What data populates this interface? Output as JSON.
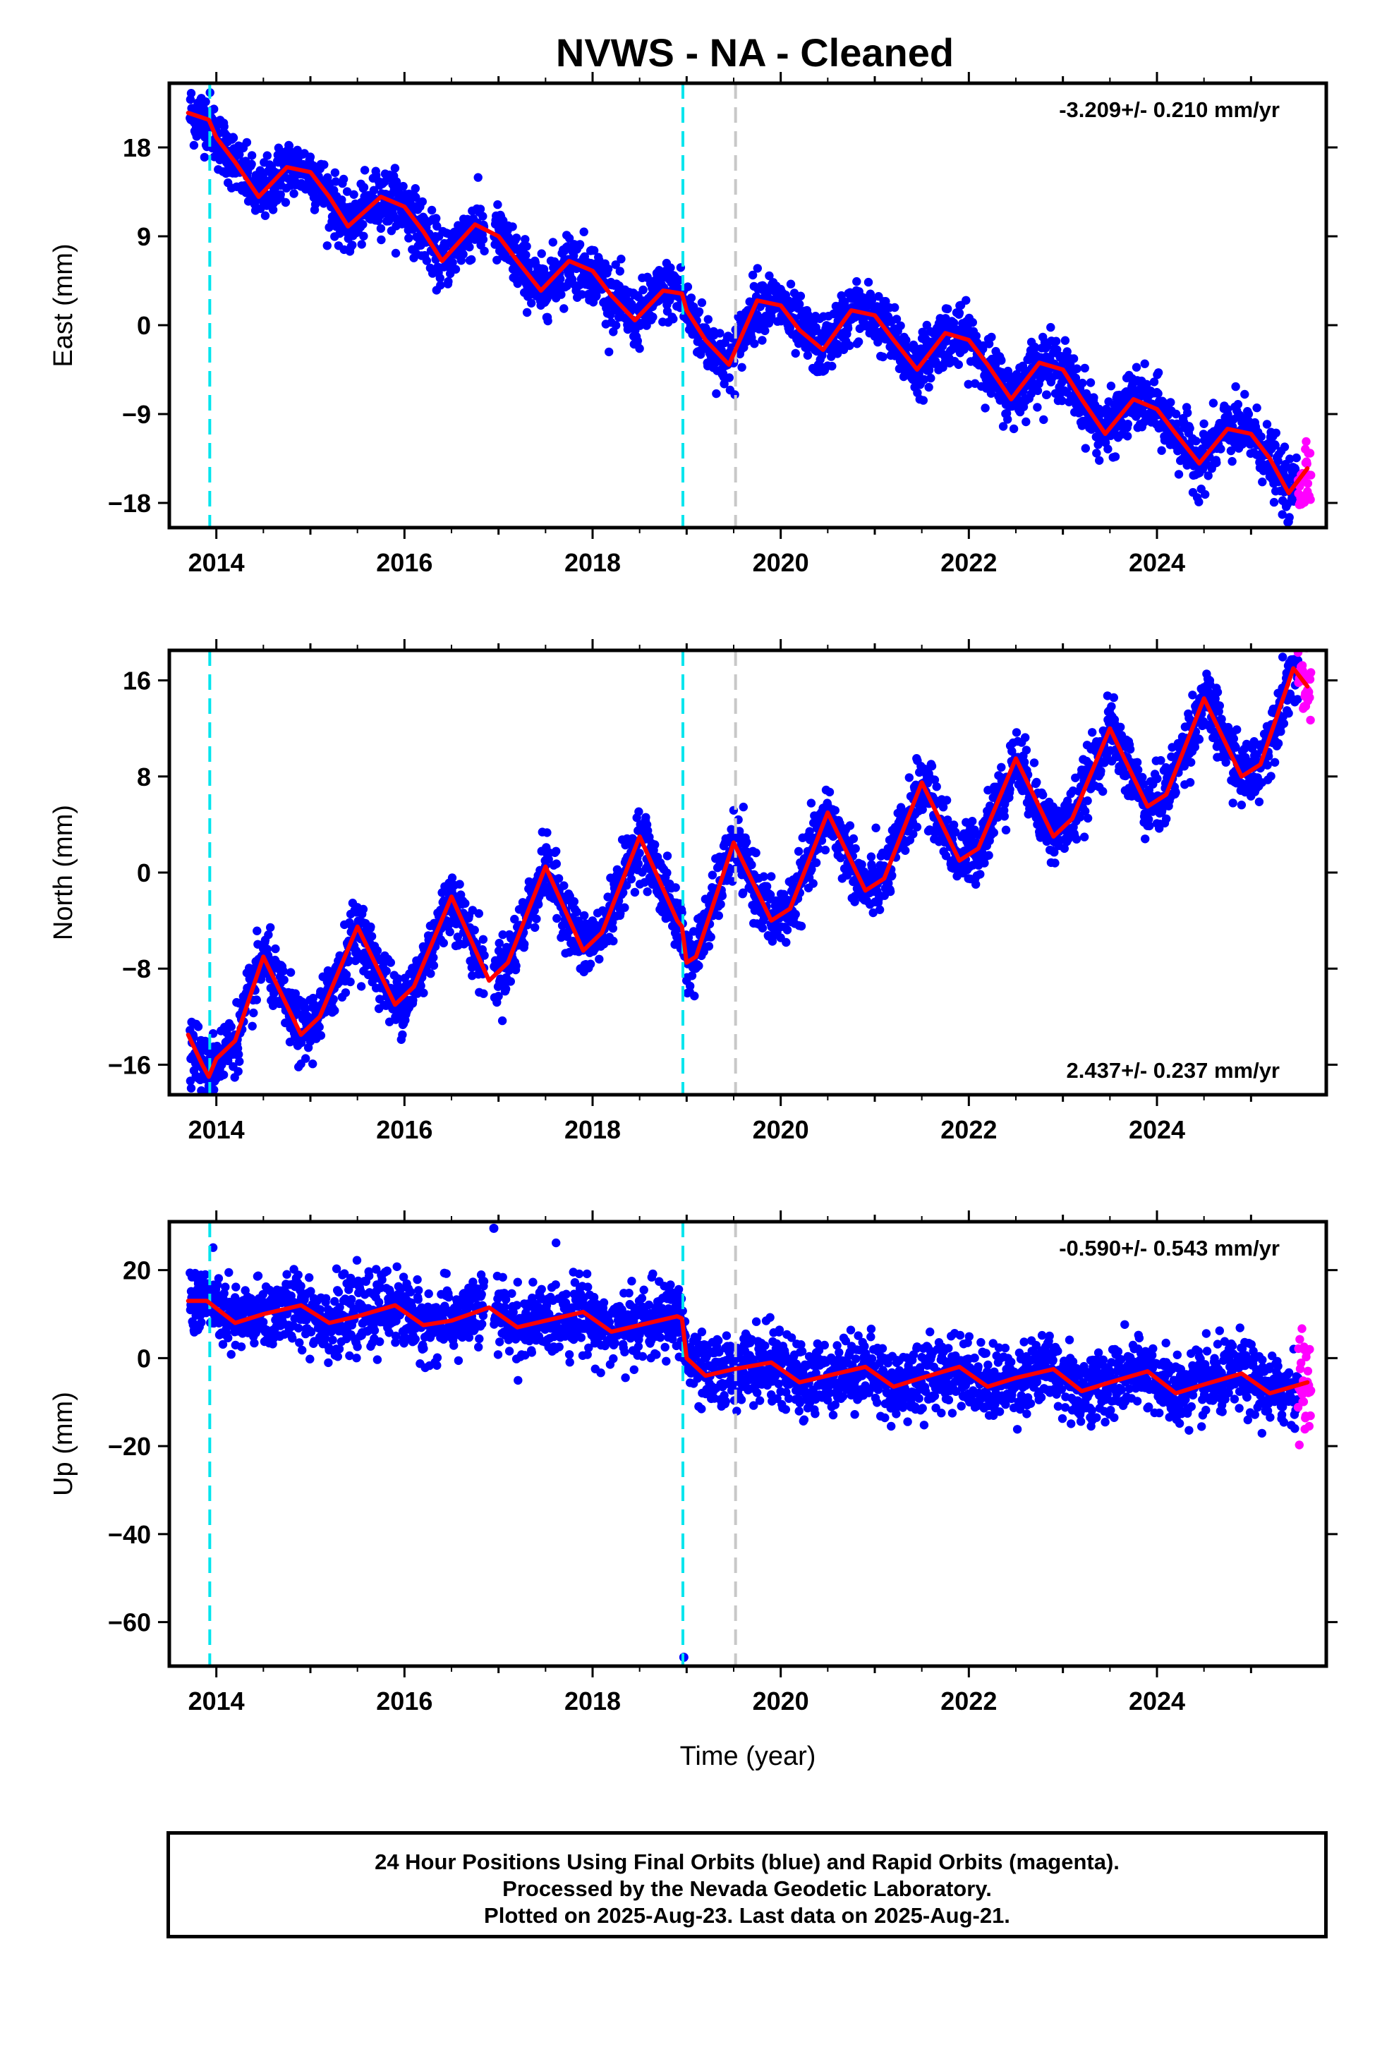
{
  "title": "NVWS  - NA - Cleaned",
  "footer": {
    "line1": "24 Hour Positions Using Final Orbits (blue) and Rapid Orbits (magenta).",
    "line2": "Processed by the Nevada Geodetic Laboratory.",
    "line3": "Plotted on 2025-Aug-23. Last data on 2025-Aug-21."
  },
  "colors": {
    "final_orbits": "#0000ff",
    "rapid_orbits": "#ff00ff",
    "model": "#ff0000",
    "equipment_change": "#00e5ee",
    "other_event": "#c8c8c8"
  },
  "chart_data": [
    {
      "type": "scatter",
      "component": "east",
      "ylabel": "East (mm)",
      "xlabel": "",
      "xlim": [
        2013.5,
        2025.8
      ],
      "ylim": [
        -20.5,
        24.5
      ],
      "yticks": [
        18,
        9,
        0,
        -9,
        -18
      ],
      "xticks": [
        2014,
        2016,
        2018,
        2020,
        2022,
        2024
      ],
      "rate_label": "-3.209+/- 0.210 mm/yr",
      "rate_position": "top-right",
      "trend_mm_per_yr": -3.209,
      "series": [
        {
          "kind": "model",
          "x": [
            2013.7,
            2013.92,
            2014.0,
            2014.2,
            2014.45,
            2014.75,
            2015.0,
            2015.2,
            2015.4,
            2015.75,
            2016.0,
            2016.2,
            2016.4,
            2016.75,
            2017.0,
            2017.2,
            2017.45,
            2017.75,
            2018.0,
            2018.2,
            2018.45,
            2018.75,
            2018.95,
            2019.0,
            2019.2,
            2019.45,
            2019.75,
            2020.0,
            2020.2,
            2020.45,
            2020.75,
            2021.0,
            2021.2,
            2021.45,
            2021.75,
            2022.0,
            2022.2,
            2022.45,
            2022.75,
            2023.0,
            2023.2,
            2023.45,
            2023.75,
            2024.0,
            2024.2,
            2024.45,
            2024.75,
            2025.0,
            2025.2,
            2025.4,
            2025.6
          ],
          "y": [
            21.5,
            20.8,
            19.0,
            16.5,
            13.0,
            16.0,
            15.5,
            13.0,
            10.0,
            13.0,
            12.0,
            9.5,
            6.5,
            10.2,
            9.0,
            6.5,
            3.5,
            6.5,
            5.5,
            3.0,
            0.5,
            3.5,
            3.2,
            1.5,
            -1.5,
            -4.0,
            2.5,
            2.0,
            -0.5,
            -2.5,
            1.5,
            1.0,
            -1.5,
            -4.5,
            -0.8,
            -1.5,
            -4.0,
            -7.5,
            -3.8,
            -4.5,
            -7.5,
            -11.0,
            -7.5,
            -8.5,
            -11.0,
            -14.0,
            -10.5,
            -11.0,
            -13.5,
            -17.0,
            -14.5
          ]
        }
      ],
      "events": [
        {
          "x": 2013.93,
          "kind": "equipment_change"
        },
        {
          "x": 2018.96,
          "kind": "equipment_change"
        },
        {
          "x": 2019.52,
          "kind": "other_event"
        }
      ]
    },
    {
      "type": "scatter",
      "component": "north",
      "ylabel": "North (mm)",
      "xlabel": "",
      "xlim": [
        2013.5,
        2025.8
      ],
      "ylim": [
        -18.5,
        18.5
      ],
      "yticks": [
        16,
        8,
        0,
        -8,
        -16
      ],
      "xticks": [
        2014,
        2016,
        2018,
        2020,
        2022,
        2024
      ],
      "rate_label": "2.437+/- 0.237 mm/yr",
      "rate_position": "bottom-right",
      "trend_mm_per_yr": 2.437,
      "series": [
        {
          "kind": "model",
          "x": [
            2013.7,
            2013.85,
            2013.92,
            2014.0,
            2014.2,
            2014.5,
            2014.9,
            2015.1,
            2015.5,
            2015.9,
            2016.1,
            2016.5,
            2016.9,
            2017.1,
            2017.5,
            2017.9,
            2018.1,
            2018.5,
            2018.9,
            2018.95,
            2019.0,
            2019.1,
            2019.5,
            2019.9,
            2020.1,
            2020.5,
            2020.9,
            2021.1,
            2021.5,
            2021.9,
            2022.1,
            2022.5,
            2022.9,
            2023.1,
            2023.5,
            2023.9,
            2024.1,
            2024.5,
            2024.9,
            2025.1,
            2025.45,
            2025.6
          ],
          "y": [
            -13.5,
            -16.0,
            -17.0,
            -15.5,
            -14.0,
            -7.0,
            -13.5,
            -12.0,
            -4.5,
            -11.0,
            -9.5,
            -2.0,
            -9.0,
            -7.5,
            0.5,
            -6.5,
            -5.0,
            3.0,
            -4.0,
            -4.5,
            -7.5,
            -7.0,
            2.5,
            -4.0,
            -3.0,
            5.0,
            -1.5,
            -0.5,
            7.5,
            1.0,
            2.0,
            9.5,
            3.0,
            4.5,
            12.0,
            5.5,
            6.5,
            14.5,
            8.0,
            9.0,
            17.0,
            15.5
          ]
        }
      ],
      "events": [
        {
          "x": 2013.93,
          "kind": "equipment_change"
        },
        {
          "x": 2018.96,
          "kind": "equipment_change"
        },
        {
          "x": 2019.52,
          "kind": "other_event"
        }
      ]
    },
    {
      "type": "scatter",
      "component": "up",
      "ylabel": "Up (mm)",
      "xlabel": "Time (year)",
      "xlim": [
        2013.5,
        2025.8
      ],
      "ylim": [
        -70,
        31
      ],
      "yticks": [
        20,
        0,
        -20,
        -40,
        -60
      ],
      "xticks": [
        2014,
        2016,
        2018,
        2020,
        2022,
        2024
      ],
      "rate_label": "-0.590+/- 0.543 mm/yr",
      "rate_position": "top-right",
      "trend_mm_per_yr": -0.59,
      "series": [
        {
          "kind": "model",
          "x": [
            2013.7,
            2013.9,
            2014.2,
            2014.5,
            2014.9,
            2015.2,
            2015.5,
            2015.9,
            2016.2,
            2016.5,
            2016.9,
            2017.2,
            2017.5,
            2017.9,
            2018.2,
            2018.5,
            2018.9,
            2018.95,
            2019.0,
            2019.2,
            2019.5,
            2019.9,
            2020.2,
            2020.5,
            2020.9,
            2021.2,
            2021.5,
            2021.9,
            2022.2,
            2022.5,
            2022.9,
            2023.2,
            2023.5,
            2023.9,
            2024.2,
            2024.5,
            2024.9,
            2025.2,
            2025.6
          ],
          "y": [
            13.0,
            13.0,
            8.0,
            10.0,
            12.0,
            8.0,
            9.5,
            12.0,
            7.5,
            8.5,
            11.5,
            7.0,
            8.5,
            10.5,
            6.0,
            7.5,
            9.5,
            9.0,
            0.0,
            -4.0,
            -2.5,
            -1.0,
            -5.5,
            -4.0,
            -2.0,
            -6.5,
            -4.5,
            -2.0,
            -6.5,
            -4.5,
            -2.5,
            -7.5,
            -5.5,
            -3.0,
            -8.0,
            -6.0,
            -3.5,
            -8.0,
            -5.5
          ]
        }
      ],
      "outliers": [
        {
          "x": 2018.97,
          "y": -68.0
        },
        {
          "x": 2016.95,
          "y": 29.5
        }
      ],
      "events": [
        {
          "x": 2013.93,
          "kind": "equipment_change"
        },
        {
          "x": 2018.96,
          "kind": "equipment_change"
        },
        {
          "x": 2019.52,
          "kind": "other_event"
        }
      ]
    }
  ]
}
